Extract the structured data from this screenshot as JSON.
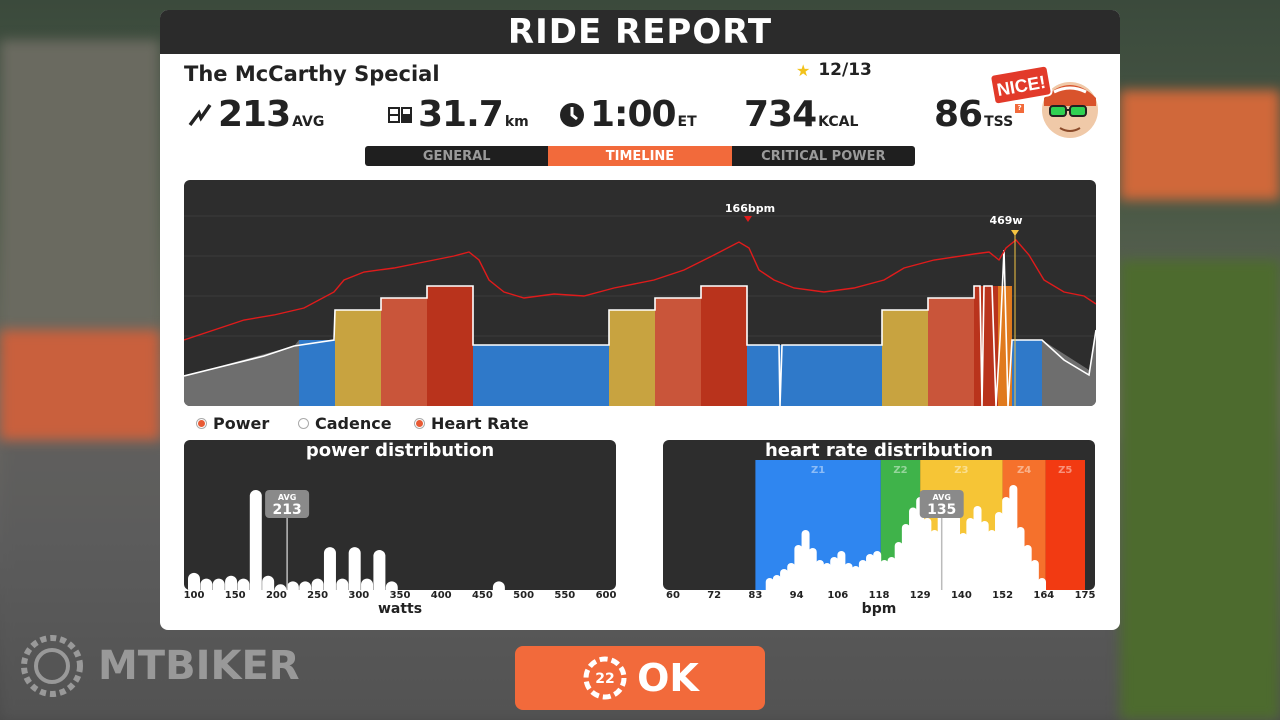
{
  "header": {
    "title": "RIDE REPORT"
  },
  "route": {
    "name": "The McCarthy Special",
    "rating": "12/13"
  },
  "stats": {
    "power": {
      "value": "213",
      "unit": "AVG",
      "icon": "power-bolt-icon"
    },
    "distance": {
      "value": "31.7",
      "unit": "km",
      "icon": "odometer-icon"
    },
    "time": {
      "value": "1:00",
      "unit": "ET",
      "icon": "clock-icon"
    },
    "calories": {
      "value": "734",
      "unit": "KCAL"
    },
    "tss": {
      "value": "86",
      "unit": "TSS",
      "help": "?"
    }
  },
  "badge": {
    "text": "NICE!"
  },
  "tabs": [
    {
      "label": "GENERAL",
      "active": false
    },
    {
      "label": "TIMELINE",
      "active": true
    },
    {
      "label": "CRITICAL POWER",
      "active": false
    }
  ],
  "timeline": {
    "hr_peak_label": "166bpm",
    "power_peak_label": "469w"
  },
  "legend": [
    {
      "label": "Power",
      "on": true
    },
    {
      "label": "Cadence",
      "on": false
    },
    {
      "label": "Heart Rate",
      "on": true
    }
  ],
  "power_distribution": {
    "title": "power distribution",
    "avg_label": "AVG",
    "avg_value": "213",
    "xlabel": "watts",
    "ticks": [
      "100",
      "150",
      "200",
      "250",
      "300",
      "350",
      "400",
      "450",
      "500",
      "550",
      "600"
    ]
  },
  "hr_distribution": {
    "title": "heart rate distribution",
    "avg_label": "AVG",
    "avg_value": "135",
    "xlabel": "bpm",
    "ticks": [
      "60",
      "72",
      "83",
      "94",
      "106",
      "118",
      "129",
      "140",
      "152",
      "164",
      "175"
    ],
    "zones": [
      "Z1",
      "Z2",
      "Z3",
      "Z4",
      "Z5"
    ]
  },
  "ok_button": {
    "label": "OK",
    "countdown": "22"
  },
  "watermark": {
    "text": "MTBIKER"
  },
  "colors": {
    "accent": "#f26a3b",
    "panel_dark": "#2d2d2d",
    "zone_blue": "#2f79c9",
    "zone_gray": "#6e6e6e",
    "zone_yellow": "#c8a340",
    "zone_orange": "#c9553a",
    "zone_red": "#b9331c",
    "hr_line": "#e01b1b"
  },
  "chart_data": [
    {
      "type": "area",
      "title": "",
      "series": [
        {
          "name": "Power",
          "unit": "w",
          "peak": 469
        },
        {
          "name": "Heart Rate",
          "unit": "bpm",
          "peak": 166
        }
      ]
    },
    {
      "type": "bar",
      "title": "power distribution",
      "xlabel": "watts",
      "xlim": [
        100,
        600
      ],
      "x": [
        100,
        115,
        130,
        145,
        160,
        175,
        190,
        205,
        220,
        235,
        250,
        265,
        280,
        295,
        310,
        325,
        340,
        470
      ],
      "values": [
        12,
        8,
        8,
        10,
        8,
        70,
        10,
        4,
        6,
        6,
        8,
        30,
        8,
        30,
        8,
        28,
        6,
        6
      ],
      "avg": 213
    },
    {
      "type": "bar",
      "title": "heart rate distribution",
      "xlabel": "bpm",
      "xlim": [
        60,
        175
      ],
      "zones": [
        "Z1",
        "Z2",
        "Z3",
        "Z4",
        "Z5"
      ],
      "x": [
        87,
        89,
        91,
        93,
        95,
        97,
        99,
        101,
        103,
        105,
        107,
        109,
        111,
        113,
        115,
        117,
        119,
        121,
        123,
        125,
        127,
        129,
        131,
        133,
        135,
        137,
        139,
        141,
        143,
        145,
        147,
        149,
        151,
        153,
        155,
        157,
        159,
        161,
        163
      ],
      "values": [
        8,
        10,
        14,
        18,
        30,
        40,
        28,
        20,
        18,
        22,
        26,
        18,
        16,
        20,
        24,
        26,
        20,
        22,
        32,
        44,
        55,
        62,
        48,
        40,
        58,
        66,
        50,
        38,
        48,
        56,
        46,
        40,
        52,
        62,
        70,
        42,
        30,
        20,
        8
      ],
      "avg": 135
    }
  ]
}
